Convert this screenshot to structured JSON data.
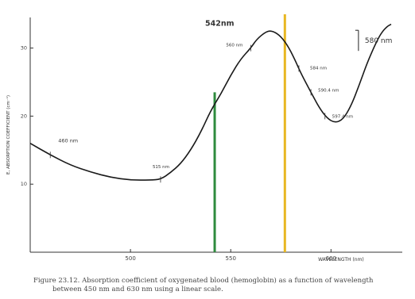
{
  "chart_data": {
    "type": "line",
    "title": "",
    "xlabel": "WAVELENGTH (nm)",
    "ylabel": "E, ABSORPTION COEFFICIENT (cm⁻¹)",
    "xlim": [
      450,
      630
    ],
    "ylim": [
      0,
      345
    ],
    "x_ticks": [
      {
        "value": 500,
        "label": "500"
      },
      {
        "value": 550,
        "label": "550"
      },
      {
        "value": 600,
        "label": "600"
      }
    ],
    "y_ticks": [
      {
        "value": 100,
        "label": "10"
      },
      {
        "value": 200,
        "label": "20"
      },
      {
        "value": 300,
        "label": "30"
      }
    ],
    "grid": false,
    "series": [
      {
        "name": "",
        "points": [
          [
            450,
            160
          ],
          [
            460,
            143
          ],
          [
            470,
            128
          ],
          [
            480,
            118
          ],
          [
            490,
            110
          ],
          [
            500,
            106
          ],
          [
            510,
            106
          ],
          [
            515,
            107
          ],
          [
            520,
            117
          ],
          [
            525,
            130
          ],
          [
            530,
            150
          ],
          [
            535,
            176
          ],
          [
            540,
            208
          ],
          [
            545,
            232
          ],
          [
            550,
            260
          ],
          [
            555,
            284
          ],
          [
            560,
            300
          ],
          [
            563,
            313
          ],
          [
            567,
            323
          ],
          [
            570,
            326
          ],
          [
            574,
            320
          ],
          [
            578,
            306
          ],
          [
            582,
            283
          ],
          [
            585,
            263
          ],
          [
            590,
            235
          ],
          [
            594,
            213
          ],
          [
            598,
            197
          ],
          [
            602,
            190
          ],
          [
            606,
            195
          ],
          [
            610,
            215
          ],
          [
            614,
            245
          ],
          [
            618,
            278
          ],
          [
            622,
            305
          ],
          [
            625,
            322
          ],
          [
            628,
            332
          ],
          [
            630,
            335
          ]
        ]
      }
    ],
    "annotations": [
      {
        "label": "460 nm",
        "x": 460,
        "y": 143
      },
      {
        "label": "515 nm",
        "x": 515,
        "y": 107
      },
      {
        "label": "542nm",
        "x": 542,
        "y": 223
      },
      {
        "label": "560 nm",
        "x": 560,
        "y": 300
      },
      {
        "label": "577nm",
        "x": 577,
        "y": 310
      },
      {
        "label": "584 nm",
        "x": 584,
        "y": 270
      },
      {
        "label": "590.4 nm",
        "x": 590,
        "y": 235
      },
      {
        "label": "597.4 nm",
        "x": 597,
        "y": 200
      },
      {
        "label": "580 nm",
        "x": 580,
        "y": 290
      }
    ],
    "vertical_lines": [
      {
        "label": "542nm",
        "x": 542,
        "color": "#2e8b3e"
      },
      {
        "label": "577nm",
        "x": 577,
        "color": "#e8b722"
      }
    ]
  },
  "caption": {
    "line1": "Figure 23.12. Absorption coefficient of oxygenated blood (hemoglobin) as a function of wavelength",
    "line2": "between 450 nm and 630 nm using a linear scale."
  },
  "colors": {
    "curve": "#1a1a1a",
    "axis": "#333333",
    "green_line": "#2e8b3e",
    "yellow_line": "#e8b722",
    "yellow_text": "#e8b722"
  }
}
